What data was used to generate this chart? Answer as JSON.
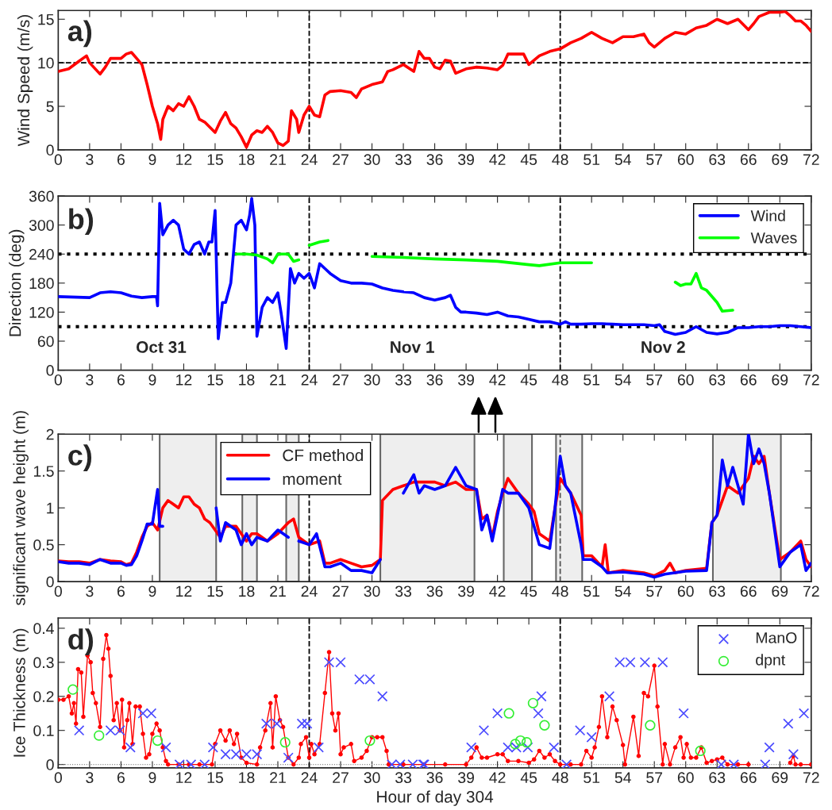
{
  "chart_data": [
    {
      "type": "line",
      "ylabel": "Wind Speed (m/s)",
      "annotations": [
        "a)"
      ],
      "xlim": [
        0,
        72
      ],
      "ylim": [
        0,
        16
      ],
      "xticks": [
        0,
        3,
        6,
        9,
        12,
        15,
        18,
        21,
        24,
        27,
        30,
        33,
        36,
        39,
        42,
        45,
        48,
        51,
        54,
        57,
        60,
        63,
        66,
        69,
        72
      ],
      "yticks": [
        0,
        5,
        10,
        15
      ],
      "ref_lines": [
        {
          "axis": "y",
          "value": 10,
          "line_style": "dashed",
          "color": "#000000"
        },
        {
          "axis": "x",
          "value": 24,
          "line_style": "dashed",
          "color": "#000000"
        },
        {
          "axis": "x",
          "value": 48,
          "line_style": "dashed",
          "color": "#000000"
        }
      ],
      "series": [
        {
          "color": "#ff0000",
          "x": [
            0,
            1,
            2,
            2.7,
            3,
            4,
            4.5,
            5,
            6,
            6.5,
            7,
            7.5,
            8,
            8.5,
            9,
            9.5,
            9.8,
            10,
            10.5,
            11,
            11.5,
            12,
            12.5,
            13,
            13.5,
            14,
            15,
            15.5,
            16,
            16.5,
            17,
            17.5,
            18,
            18.5,
            19,
            19.5,
            20,
            20.5,
            21,
            21.5,
            22,
            22.3,
            22.8,
            23,
            23.5,
            24,
            24.5,
            25,
            25.5,
            26,
            27,
            28,
            28.5,
            29,
            30,
            31,
            31.5,
            32,
            33,
            34,
            34.5,
            35,
            35.5,
            36,
            36.5,
            37,
            37.5,
            38,
            39,
            40,
            41,
            42,
            42.5,
            43,
            44,
            44.5,
            45,
            46,
            47,
            48,
            49,
            50,
            51,
            52,
            53,
            54,
            55,
            56,
            56.5,
            57,
            58,
            59,
            60,
            61,
            62,
            63,
            64,
            65,
            66,
            66.5,
            67,
            68,
            69,
            69.5,
            70,
            70.5,
            71,
            71.5,
            72
          ],
          "values": [
            9.0,
            9.3,
            10.2,
            10.8,
            10.0,
            8.7,
            9.5,
            10.5,
            10.5,
            11.0,
            11.2,
            10.5,
            9.8,
            7.5,
            5.0,
            3.0,
            1.2,
            3.5,
            5.0,
            4.5,
            5.3,
            5.0,
            6.1,
            5.0,
            3.5,
            3.2,
            2.0,
            3.3,
            4.3,
            3.0,
            2.5,
            1.5,
            0.3,
            1.7,
            2.2,
            2.0,
            2.7,
            2.0,
            0.8,
            0.5,
            1.0,
            4.5,
            3.5,
            2.0,
            4.0,
            5.0,
            4.0,
            3.8,
            6.3,
            6.7,
            6.8,
            6.6,
            6.0,
            7.0,
            7.5,
            7.8,
            9.0,
            9.2,
            9.8,
            9.0,
            11.3,
            10.5,
            10.5,
            9.5,
            9.3,
            10.3,
            10.2,
            8.8,
            9.3,
            9.5,
            9.4,
            9.2,
            9.7,
            11.0,
            11.0,
            11.0,
            9.8,
            10.8,
            11.3,
            11.6,
            12.3,
            12.8,
            13.5,
            12.8,
            12.3,
            13.0,
            13.0,
            13.3,
            12.3,
            11.8,
            12.8,
            13.5,
            13.3,
            14.0,
            14.3,
            15.0,
            14.5,
            15.0,
            13.8,
            14.5,
            15.3,
            15.8,
            15.8,
            15.9,
            15.4,
            14.8,
            14.8,
            14.3,
            13.6
          ]
        }
      ]
    },
    {
      "type": "line",
      "ylabel": "Direction (deg)",
      "annotations": [
        "b)",
        "Oct 31",
        "Nov 1",
        "Nov 2"
      ],
      "legend": "top right",
      "xlim": [
        0,
        72
      ],
      "ylim": [
        0,
        360
      ],
      "xticks": [
        0,
        3,
        6,
        9,
        12,
        15,
        18,
        21,
        24,
        27,
        30,
        33,
        36,
        39,
        42,
        45,
        48,
        51,
        54,
        57,
        60,
        63,
        66,
        69,
        72
      ],
      "yticks": [
        0,
        60,
        120,
        180,
        240,
        300,
        360
      ],
      "ref_lines": [
        {
          "axis": "y",
          "value": 240,
          "line_style": "dotted",
          "color": "#000000"
        },
        {
          "axis": "y",
          "value": 90,
          "line_style": "dotted",
          "color": "#000000"
        },
        {
          "axis": "x",
          "value": 24,
          "line_style": "dashed",
          "color": "#000000"
        },
        {
          "axis": "x",
          "value": 48,
          "line_style": "dashed",
          "color": "#000000"
        }
      ],
      "series": [
        {
          "name": "Wind",
          "color": "#0000ff",
          "x": [
            0,
            3,
            4,
            5,
            6,
            7,
            8,
            9,
            9.4,
            9.5,
            9.7,
            10,
            10.5,
            11,
            11.5,
            12,
            12.5,
            13,
            13.5,
            14,
            14.4,
            14.7,
            15,
            15.3,
            15.7,
            16,
            16.5,
            17,
            17.5,
            18,
            18.3,
            18.5,
            18.8,
            19,
            19.5,
            20,
            20.5,
            21,
            21.3,
            21.8,
            22.2,
            22.6,
            23,
            23.5,
            24,
            24.5,
            25,
            25.5,
            26,
            27,
            28,
            29,
            30,
            31,
            32,
            33,
            34,
            35,
            36,
            37,
            37.5,
            38,
            38.5,
            39,
            40,
            41,
            42,
            43,
            44,
            45,
            46,
            47,
            48,
            48.5,
            49,
            50,
            51,
            52,
            53,
            54,
            55,
            56,
            57,
            57.5,
            58,
            59,
            60,
            61,
            62,
            63,
            64,
            65,
            66,
            67,
            68,
            69,
            70,
            71,
            72
          ],
          "values": [
            152,
            150,
            160,
            162,
            160,
            153,
            150,
            152,
            152,
            133,
            345,
            280,
            300,
            310,
            300,
            250,
            240,
            260,
            265,
            240,
            265,
            265,
            330,
            65,
            140,
            140,
            180,
            300,
            310,
            290,
            320,
            355,
            300,
            70,
            130,
            150,
            140,
            160,
            120,
            45,
            210,
            180,
            200,
            190,
            200,
            170,
            220,
            210,
            200,
            185,
            180,
            180,
            178,
            170,
            165,
            162,
            160,
            150,
            145,
            150,
            155,
            130,
            120,
            120,
            118,
            115,
            120,
            112,
            110,
            105,
            100,
            100,
            95,
            100,
            95,
            95,
            96,
            96,
            95,
            94,
            94,
            94,
            92,
            94,
            80,
            74,
            78,
            90,
            78,
            75,
            78,
            88,
            88,
            90,
            90,
            92,
            92,
            90,
            88
          ]
        },
        {
          "name": "Waves",
          "color": "#00ff00",
          "x": [
            17,
            18,
            19,
            20,
            20.5,
            21,
            22,
            22.5,
            23,
            23.5,
            24,
            25,
            25.8,
            28,
            30,
            33,
            36,
            39,
            42,
            45,
            46,
            48,
            51,
            55,
            59,
            59.5,
            60,
            60.5,
            61,
            61.5,
            62,
            63,
            63.5,
            64.5
          ],
          "values": [
            240,
            240,
            238,
            230,
            222,
            240,
            240,
            225,
            228,
            null,
            258,
            265,
            268,
            null,
            235,
            233,
            230,
            228,
            225,
            218,
            216,
            222,
            222,
            null,
            182,
            175,
            178,
            178,
            200,
            170,
            165,
            140,
            122,
            124
          ]
        }
      ]
    },
    {
      "type": "line",
      "ylabel": "significant wave height (m)",
      "annotations": [
        "c)"
      ],
      "legend": "top left",
      "xlim": [
        0,
        72
      ],
      "ylim": [
        0,
        2
      ],
      "xticks": [
        0,
        3,
        6,
        9,
        12,
        15,
        18,
        21,
        24,
        27,
        30,
        33,
        36,
        39,
        42,
        45,
        48,
        51,
        54,
        57,
        60,
        63,
        66,
        69,
        72
      ],
      "yticks": [
        0,
        0.5,
        1,
        1.5,
        2
      ],
      "ref_lines": [
        {
          "axis": "x",
          "value": 24,
          "line_style": "dashed",
          "color": "#000000"
        },
        {
          "axis": "x",
          "value": 48,
          "line_style": "dashed",
          "color": "#555555"
        }
      ],
      "bands": [
        {
          "axis": "x",
          "from": 9.7,
          "to": 15.1,
          "color": "#eeeeee"
        },
        {
          "axis": "x",
          "from": 17.6,
          "to": 19,
          "color": "#eeeeee"
        },
        {
          "axis": "x",
          "from": 21.8,
          "to": 23,
          "color": "#eeeeee"
        },
        {
          "axis": "x",
          "from": 30.8,
          "to": 39.8,
          "color": "#eeeeee"
        },
        {
          "axis": "x",
          "from": 42.6,
          "to": 45.3,
          "color": "#eeeeee"
        },
        {
          "axis": "x",
          "from": 47.6,
          "to": 50.1,
          "color": "#eeeeee"
        },
        {
          "axis": "x",
          "from": 62.6,
          "to": 69.1,
          "color": "#eeeeee"
        }
      ],
      "series": [
        {
          "name": "CF method",
          "color": "#ff0000",
          "x": [
            0,
            1,
            2,
            3,
            4,
            5,
            6,
            6.5,
            7,
            7.5,
            8,
            8.5,
            9,
            9.5,
            10,
            10.5,
            11,
            11.5,
            12,
            12.5,
            13,
            13.5,
            14,
            14.5,
            15,
            15.5,
            16,
            17,
            17.5,
            18,
            18.5,
            19,
            20,
            21,
            22,
            22.5,
            23,
            24,
            25,
            25.5,
            26,
            27,
            28,
            29,
            30,
            30.8,
            31,
            32,
            33,
            34,
            35,
            36,
            37,
            38,
            39,
            40,
            40.5,
            41,
            41.5,
            42,
            42.5,
            43,
            44,
            45,
            45.5,
            46,
            47,
            47.5,
            48,
            49,
            50,
            50.2,
            51,
            52,
            52.3,
            52.6,
            54,
            56,
            57,
            58,
            58.5,
            59,
            60,
            62,
            62.5,
            63,
            64,
            65,
            66,
            66.5,
            67,
            67.5,
            68,
            69,
            70,
            71,
            71.5,
            72
          ],
          "values": [
            0.28,
            0.27,
            0.27,
            0.25,
            0.3,
            0.28,
            0.27,
            0.23,
            0.25,
            0.4,
            0.6,
            0.75,
            0.8,
            0.7,
            1.0,
            1.1,
            1.05,
            1.0,
            1.15,
            1.15,
            1.05,
            1.0,
            0.85,
            0.8,
            0.7,
            0.6,
            0.75,
            0.75,
            0.65,
            0.55,
            0.65,
            0.65,
            0.55,
            0.65,
            0.8,
            0.85,
            0.6,
            0.5,
            0.55,
            0.25,
            0.25,
            0.3,
            0.25,
            0.2,
            0.22,
            0.3,
            1.1,
            1.25,
            1.3,
            1.35,
            1.35,
            1.35,
            1.3,
            1.35,
            1.25,
            1.25,
            0.85,
            0.9,
            0.6,
            0.95,
            1.2,
            1.4,
            1.2,
            1.05,
            0.95,
            0.65,
            0.55,
            1.0,
            1.4,
            1.2,
            0.9,
            0.35,
            0.35,
            0.2,
            0.5,
            0.12,
            0.15,
            0.12,
            0.08,
            0.15,
            0.25,
            0.12,
            0.15,
            0.18,
            0.8,
            0.9,
            1.3,
            1.2,
            1.4,
            1.7,
            1.6,
            1.7,
            1.2,
            0.3,
            0.4,
            0.55,
            0.3,
            0.2
          ]
        },
        {
          "name": "moment",
          "color": "#0000ff",
          "x": [
            0,
            1,
            2,
            3,
            4,
            5,
            6,
            6.5,
            7,
            7.5,
            8,
            8.5,
            9,
            9.5,
            9.7,
            10,
            12,
            15.1,
            15.5,
            16,
            17,
            17.5,
            18,
            18.5,
            19,
            20,
            21,
            22,
            22.5,
            23,
            24,
            24.7,
            25.5,
            26,
            27,
            28,
            29,
            30,
            30.8,
            32,
            33,
            34,
            34.5,
            35,
            36,
            37,
            38,
            39,
            40,
            40.5,
            41,
            41.5,
            42,
            42.5,
            43,
            44,
            45,
            46,
            47,
            47.5,
            48,
            48.5,
            49,
            50,
            50.2,
            51,
            52,
            52.5,
            54,
            56,
            57,
            58,
            60,
            62,
            62.5,
            63,
            63.5,
            64,
            64.5,
            65,
            65.5,
            66,
            66.5,
            67,
            67.5,
            68,
            69,
            70,
            71,
            71.5,
            72
          ],
          "values": [
            0.27,
            0.25,
            0.25,
            0.23,
            0.3,
            0.25,
            0.25,
            0.22,
            0.23,
            0.35,
            0.55,
            0.78,
            0.78,
            1.25,
            0.75,
            0.75,
            null,
            1.0,
            0.55,
            0.8,
            0.7,
            0.5,
            0.65,
            0.5,
            0.6,
            0.55,
            0.7,
            0.6,
            null,
            0.55,
            0.5,
            0.65,
            0.2,
            0.2,
            0.25,
            0.15,
            0.15,
            0.12,
            0.3,
            null,
            1.2,
            1.45,
            1.2,
            1.3,
            1.25,
            1.3,
            1.55,
            1.3,
            1.25,
            0.7,
            0.9,
            0.55,
            0.9,
            1.25,
            1.2,
            1.2,
            1.0,
            0.5,
            0.45,
            1.0,
            1.7,
            1.3,
            1.2,
            0.5,
            0.3,
            0.3,
            0.2,
            0.12,
            0.13,
            0.1,
            0.06,
            0.1,
            0.14,
            0.15,
            0.8,
            0.9,
            1.65,
            1.3,
            1.55,
            1.3,
            1.05,
            2.0,
            1.6,
            1.8,
            1.6,
            1.2,
            0.2,
            0.4,
            0.5,
            0.15,
            0.25
          ]
        }
      ]
    },
    {
      "type": "line",
      "xlabel": "Hour of day 304",
      "ylabel": "Ice Thickness (m)",
      "annotations": [
        "d)"
      ],
      "legend": "top right",
      "xlim": [
        0,
        72
      ],
      "ylim": [
        -0.01,
        0.43
      ],
      "xticks": [
        0,
        3,
        6,
        9,
        12,
        15,
        18,
        21,
        24,
        27,
        30,
        33,
        36,
        39,
        42,
        45,
        48,
        51,
        54,
        57,
        60,
        63,
        66,
        69,
        72
      ],
      "yticks": [
        0,
        0.1,
        0.2,
        0.3,
        0.4
      ],
      "ref_lines": [
        {
          "axis": "y",
          "value": 0,
          "line_style": "dotted",
          "color": "#888888"
        },
        {
          "axis": "x",
          "value": 24,
          "line_style": "dashed",
          "color": "#000000"
        },
        {
          "axis": "x",
          "value": 48,
          "line_style": "dashed",
          "color": "#000000"
        }
      ],
      "series": [
        {
          "type": "line",
          "marker": "circle",
          "color": "#ff0000",
          "x": [
            0,
            0.5,
            1,
            1.3,
            1.5,
            1.7,
            1.9,
            2.2,
            2.4,
            2.8,
            3.1,
            3.3,
            3.6,
            4,
            4.3,
            4.6,
            4.8,
            5,
            5.3,
            5.6,
            5.9,
            6.1,
            6.3,
            6.6,
            6.8,
            7.1,
            7.4,
            7.8,
            8.1,
            8.4,
            8.7,
            9,
            9.4,
            9.7,
            10,
            10.3,
            10.5,
            11.5,
            12.5,
            13.5,
            14.7,
            15,
            15.5,
            16,
            16.4,
            16.8,
            17.1,
            17.5,
            18,
            19,
            19.3,
            19.8,
            20.3,
            20.5,
            20.8,
            21.2,
            21.5,
            22,
            22.5,
            23,
            23.2,
            23.7,
            24,
            24.2,
            24.5,
            25,
            25.5,
            25.9,
            26.2,
            26.5,
            26.8,
            27,
            27.3,
            28,
            28.3,
            29,
            29.5,
            30,
            30.5,
            31,
            31.4,
            31.6,
            33,
            35,
            37,
            39,
            39.5,
            40,
            40.5,
            41,
            42,
            42.5,
            43,
            44,
            45,
            45.5,
            46,
            46.5,
            47,
            47.5,
            48,
            49,
            50,
            50.5,
            51,
            51.3,
            51.7,
            52,
            52.5,
            53,
            53.4,
            54,
            54.2,
            55,
            55.5,
            56,
            56.4,
            57,
            57.3,
            57.8,
            58,
            58.5,
            59,
            59.5,
            59.8,
            60.1,
            60.5,
            61,
            61.5,
            62,
            62.5,
            63,
            63.5,
            64,
            65,
            66,
            68,
            70,
            70.3,
            70.5,
            71,
            72
          ],
          "values": [
            0.19,
            0.19,
            0.2,
            0.15,
            0.18,
            0.12,
            0.28,
            0.27,
            0.14,
            0.32,
            0.3,
            0.21,
            0.18,
            0.11,
            0.31,
            0.38,
            0.34,
            0.26,
            0.13,
            0.18,
            0.1,
            0.19,
            0.05,
            0.13,
            0.18,
            0.06,
            0.17,
            0.17,
            0.09,
            0.02,
            0.03,
            0.09,
            0.12,
            0.1,
            0.05,
            0.01,
            0,
            0,
            0,
            0,
            0,
            0.06,
            0.1,
            0.07,
            0.1,
            0.06,
            0.09,
            0.02,
            0.005,
            0,
            0.05,
            0.1,
            0.18,
            0.05,
            0.2,
            0.13,
            0.11,
            0.02,
            0,
            0.02,
            0.06,
            0.08,
            0.02,
            0.06,
            0.03,
            0.06,
            0.21,
            0.33,
            0.15,
            0.1,
            0.15,
            0.03,
            0.05,
            0.06,
            0.01,
            0.02,
            0.04,
            0.08,
            0.08,
            0.08,
            0.04,
            0,
            0,
            0,
            0,
            0,
            0.02,
            0.05,
            0.02,
            0.02,
            0.03,
            0.03,
            0.01,
            0.01,
            0.005,
            0.015,
            0.04,
            0.02,
            0.03,
            0.01,
            0,
            0,
            0,
            0.04,
            0.02,
            0.05,
            0.11,
            0.2,
            0.08,
            0.17,
            0.13,
            0.057,
            0,
            0.14,
            0.025,
            0.21,
            0.2,
            0.29,
            0.17,
            0,
            0.06,
            0,
            0.05,
            0.08,
            0.02,
            0.06,
            0.02,
            0.02,
            0.05,
            0.005,
            0.01,
            0.015,
            0.02,
            0,
            0,
            0,
            null,
            0.005,
            0.025,
            0,
            0,
            0
          ]
        },
        {
          "name": "ManO",
          "type": "scatter",
          "marker": "cross",
          "color": "#4a4aff",
          "x": [
            2.0,
            5.0,
            5.9,
            6.9,
            8.1,
            8.9,
            10.3,
            11.6,
            12.7,
            14.0,
            14.8,
            16.0,
            17.0,
            18.0,
            19.0,
            19.9,
            20.9,
            22.0,
            23.3,
            23.8,
            24.9,
            25.9,
            27.0,
            28.8,
            29.8,
            31.0,
            31.9,
            32.7,
            33.9,
            34.9,
            35.0,
            39.5,
            40.7,
            42.0,
            43.0,
            43.8,
            44.9,
            45.9,
            46.2,
            47.4,
            48.6,
            49.9,
            51.0,
            52.7,
            53.7,
            54.7,
            56.1,
            57.8,
            59.8,
            63.4,
            64.6,
            67.6,
            68.0,
            69.8,
            70.3,
            71.3
          ],
          "values": [
            0.1,
            0.1,
            0.1,
            0.05,
            0.15,
            0.15,
            0.05,
            0,
            0,
            0,
            0.05,
            0.03,
            0.03,
            0.03,
            0.03,
            0.12,
            0.12,
            0.02,
            0.12,
            0.12,
            0.05,
            0.3,
            0.3,
            0.25,
            0.25,
            0.2,
            0,
            0,
            0,
            0,
            0,
            0.05,
            0.1,
            0.15,
            0.05,
            0.05,
            0.05,
            0.15,
            0.2,
            0.05,
            0,
            0.1,
            0.08,
            0.2,
            0.3,
            0.3,
            0.3,
            0.3,
            0.15,
            0,
            0,
            0,
            0.05,
            0.12,
            0.03,
            0.15
          ]
        },
        {
          "name": "dpnt",
          "type": "scatter",
          "marker": "circle",
          "color": "#33ee33",
          "x": [
            1.4,
            3.9,
            9.5,
            21.7,
            29.8,
            43.1,
            43.7,
            44.2,
            44.8,
            45.4,
            46.5,
            56.6,
            61.4
          ],
          "values": [
            0.22,
            0.085,
            0.07,
            0.065,
            0.07,
            0.15,
            0.06,
            0.07,
            0.065,
            0.18,
            0.115,
            0.115,
            0.04
          ]
        }
      ]
    }
  ]
}
